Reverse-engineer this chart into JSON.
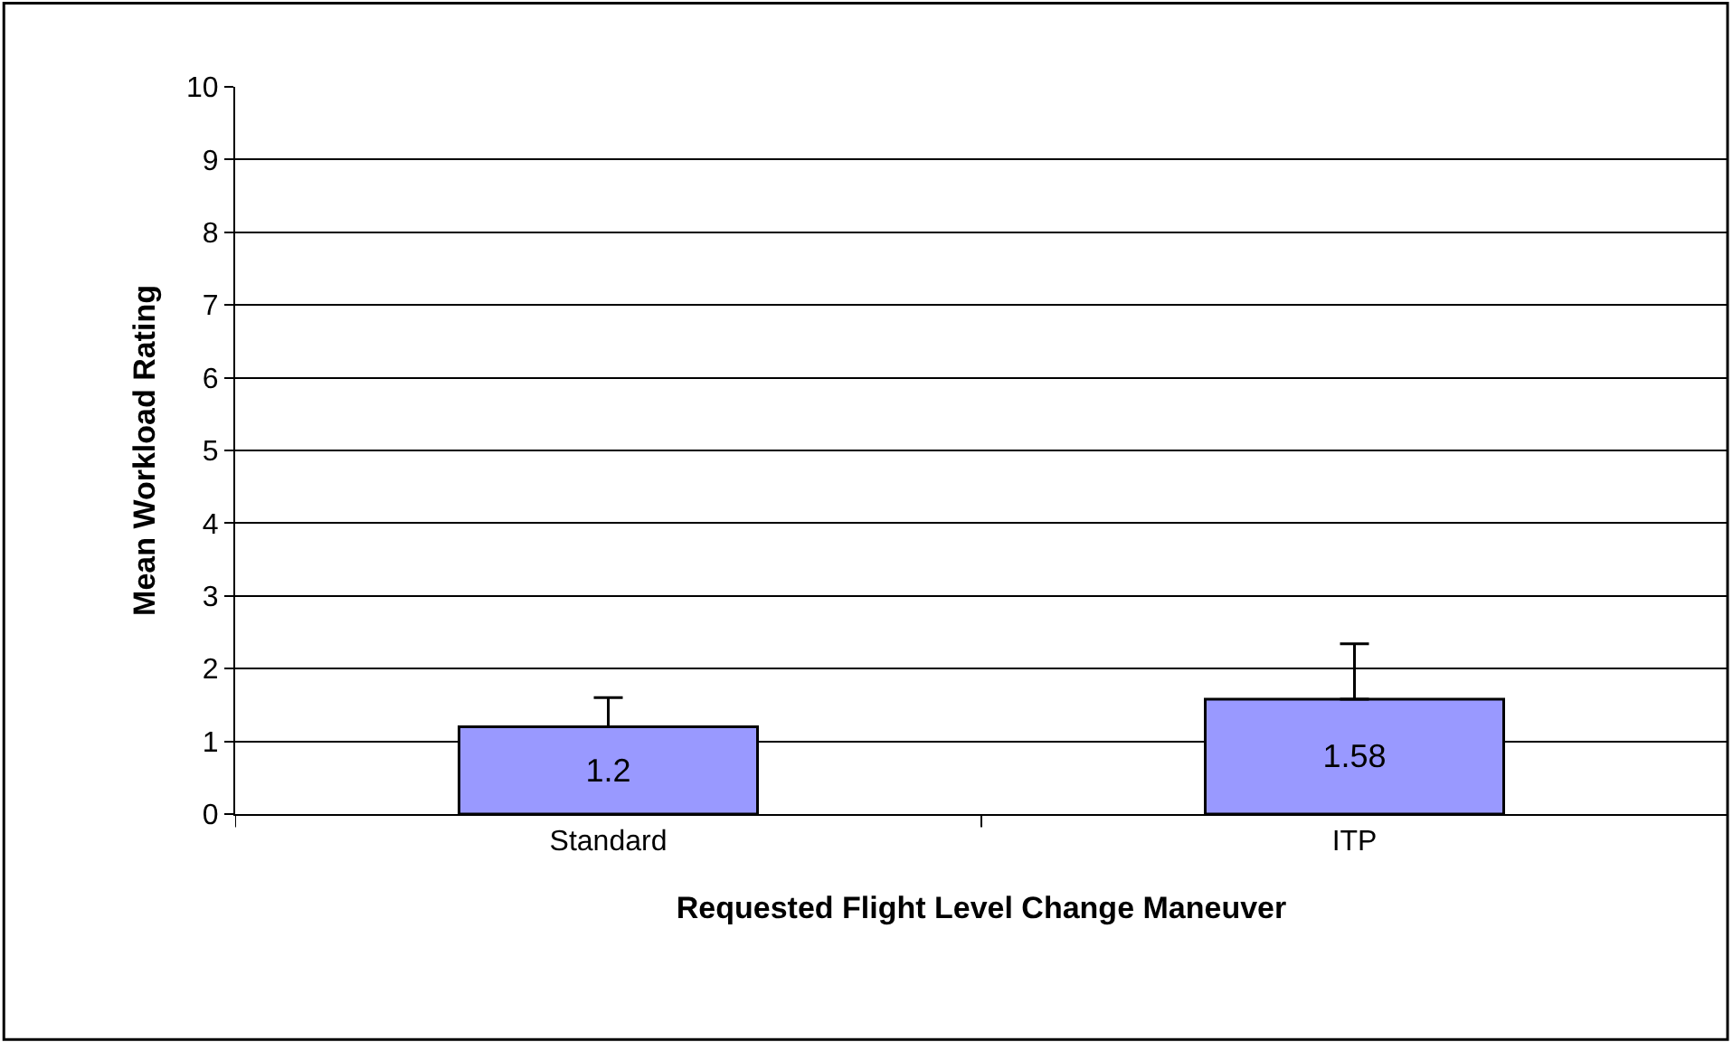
{
  "chart_data": {
    "type": "bar",
    "xlabel": "Requested Flight Level Change Maneuver",
    "ylabel": "Mean Workload Rating",
    "categories": [
      "Standard",
      "ITP"
    ],
    "values": [
      1.2,
      1.58
    ],
    "errors": [
      [
        1.2,
        1.6
      ],
      [
        1.58,
        2.34
      ]
    ],
    "color": "#9999ff",
    "ylim": [
      0,
      10
    ],
    "yticks": [
      0,
      1,
      2,
      3,
      4,
      5,
      6,
      7,
      8,
      9,
      10
    ],
    "grid": "y",
    "data_labels": true
  }
}
